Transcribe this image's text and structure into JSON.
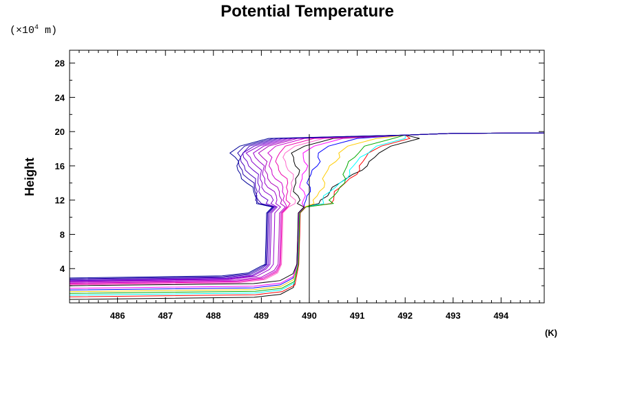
{
  "chart_data": {
    "type": "line",
    "title": "Potential Temperature",
    "ylabel": "Height",
    "y_unit_prefix": "(×10",
    "y_unit_exp": "4",
    "y_unit_suffix": " m)",
    "xlabel": "(K)",
    "xlim": [
      485.0,
      494.9
    ],
    "ylim": [
      0,
      29.5
    ],
    "x_ticks": [
      "486",
      "487",
      "488",
      "489",
      "490",
      "491",
      "492",
      "493",
      "494"
    ],
    "y_ticks": [
      "4",
      "8",
      "12",
      "16",
      "20",
      "24",
      "28"
    ],
    "grid": false,
    "legend": "none",
    "ref_line_x": 490.0,
    "series": [
      {
        "color": "#000000",
        "base_y": 0.4,
        "x_low": 489.75,
        "x_mid": 490.2,
        "x_top": 491.5
      },
      {
        "color": "#ff0000",
        "base_y": 0.7,
        "x_low": 489.78,
        "x_mid": 490.45,
        "x_top": 491.3
      },
      {
        "color": "#00ffff",
        "base_y": 0.9,
        "x_low": 489.76,
        "x_mid": 490.3,
        "x_top": 491.2
      },
      {
        "color": "#00aa00",
        "base_y": 1.1,
        "x_low": 489.77,
        "x_mid": 490.5,
        "x_top": 490.95
      },
      {
        "color": "#ffcc00",
        "base_y": 1.3,
        "x_low": 489.75,
        "x_mid": 490.1,
        "x_top": 490.6
      },
      {
        "color": "#0000ff",
        "base_y": 1.5,
        "x_low": 489.74,
        "x_mid": 489.9,
        "x_top": 490.2
      },
      {
        "color": "#ff00ff",
        "base_y": 1.7,
        "x_low": 489.75,
        "x_mid": 489.85,
        "x_top": 489.9
      },
      {
        "color": "#000000",
        "base_y": 2.0,
        "x_low": 489.74,
        "x_mid": 489.75,
        "x_top": 489.7
      },
      {
        "color": "#ff66cc",
        "base_y": 2.1,
        "x_low": 489.42,
        "x_mid": 489.7,
        "x_top": 489.5
      },
      {
        "color": "#ee00aa",
        "base_y": 2.2,
        "x_low": 489.4,
        "x_mid": 489.6,
        "x_top": 489.3
      },
      {
        "color": "#cc00cc",
        "base_y": 2.3,
        "x_low": 489.38,
        "x_mid": 489.5,
        "x_top": 489.1
      },
      {
        "color": "#aa00bb",
        "base_y": 2.4,
        "x_low": 489.35,
        "x_mid": 489.4,
        "x_top": 488.95
      },
      {
        "color": "#9900cc",
        "base_y": 2.5,
        "x_low": 489.25,
        "x_mid": 489.3,
        "x_top": 488.85
      },
      {
        "color": "#8800cc",
        "base_y": 2.55,
        "x_low": 489.18,
        "x_mid": 489.2,
        "x_top": 488.75
      },
      {
        "color": "#6600cc",
        "base_y": 2.6,
        "x_low": 489.15,
        "x_mid": 489.1,
        "x_top": 488.65
      },
      {
        "color": "#4400bb",
        "base_y": 2.7,
        "x_low": 489.12,
        "x_mid": 489.0,
        "x_top": 488.55
      },
      {
        "color": "#2200aa",
        "base_y": 2.8,
        "x_low": 489.1,
        "x_mid": 488.95,
        "x_top": 488.45
      },
      {
        "color": "#000099",
        "base_y": 2.9,
        "x_low": 489.08,
        "x_mid": 488.9,
        "x_top": 488.35
      }
    ]
  }
}
